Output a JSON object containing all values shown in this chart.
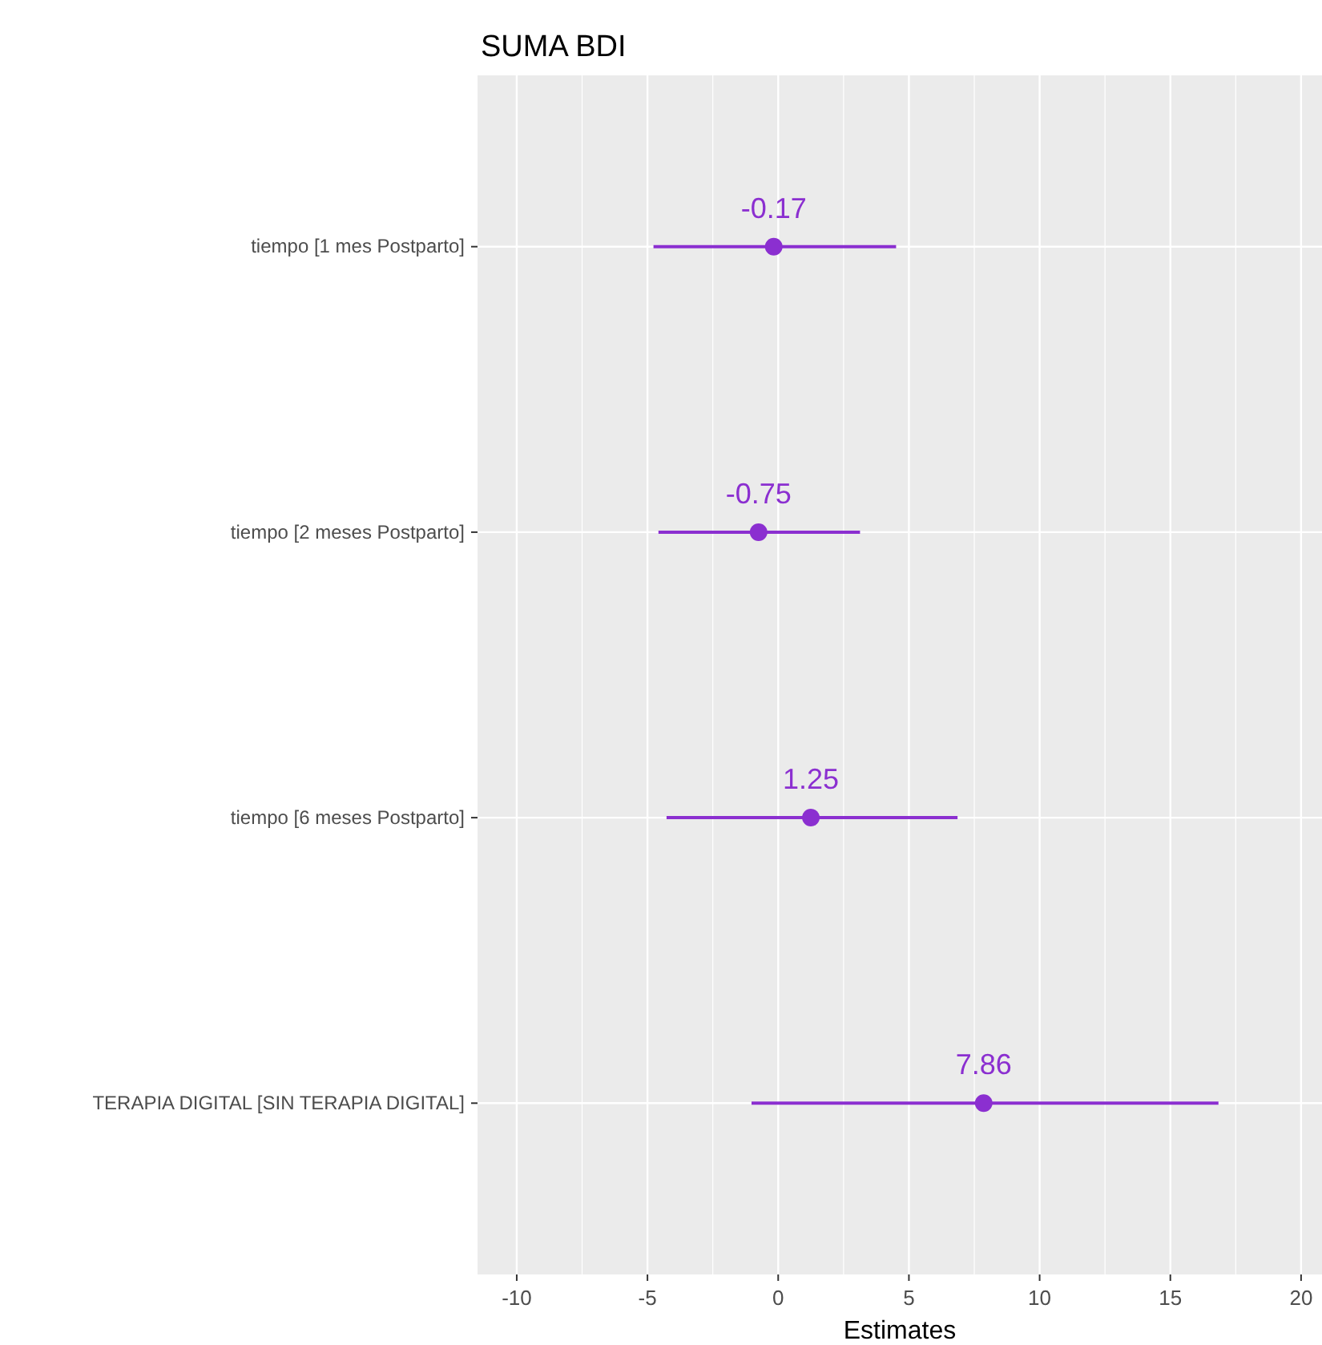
{
  "chart_data": {
    "type": "scatter",
    "orientation": "horizontal",
    "title": "SUMA BDI",
    "xlabel": "Estimates",
    "categories": [
      "tiempo [1 mes Postparto]",
      "tiempo [2 meses Postparto]",
      "tiempo [6 meses Postparto]",
      "TERAPIA DIGITAL [SIN TERAPIA DIGITAL]"
    ],
    "values": [
      -0.17,
      -0.75,
      1.25,
      7.86
    ],
    "errors": [
      [
        -4.77,
        4.51
      ],
      [
        -4.58,
        3.13
      ],
      [
        -4.27,
        6.86
      ],
      [
        -1.02,
        16.84
      ]
    ],
    "color": "#8b2fd0",
    "data_labels": true,
    "marker": "circle",
    "xlim": [
      -11.5,
      20.8
    ],
    "xticks": [
      -10,
      -5,
      0,
      5,
      10,
      15,
      20
    ],
    "grid": true
  }
}
